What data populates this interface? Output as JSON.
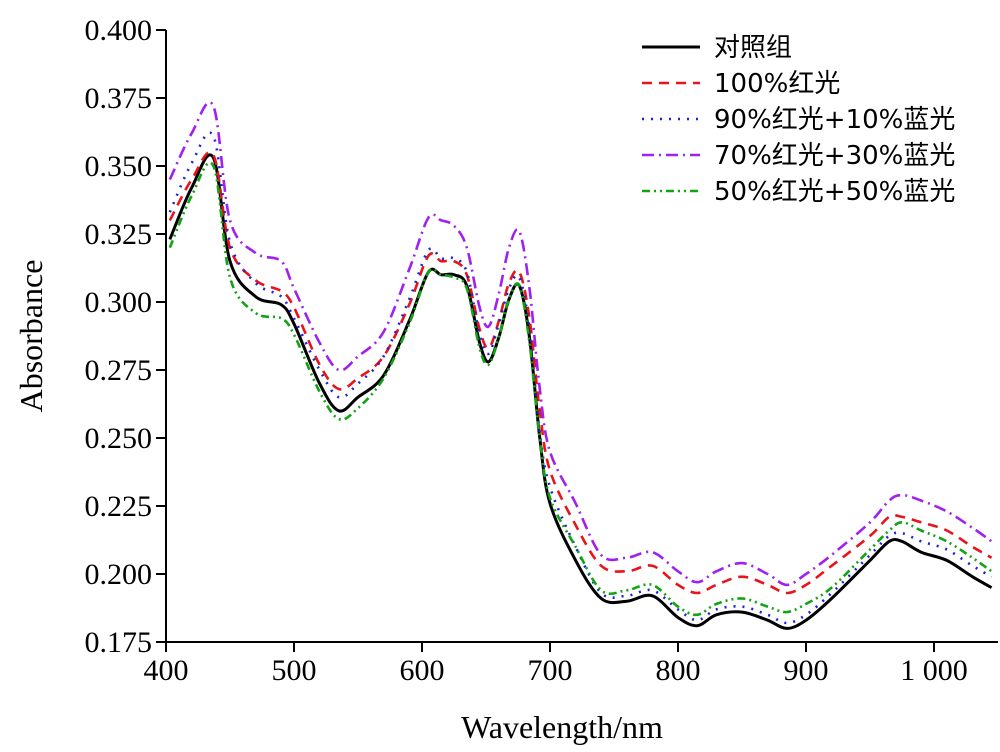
{
  "chart_data": {
    "type": "line",
    "title": "",
    "xlabel": "Wavelength/nm",
    "ylabel": "Absorbance",
    "xlim": [
      400,
      1050
    ],
    "ylim": [
      0.175,
      0.4
    ],
    "x_ticks": [
      400,
      500,
      600,
      700,
      800,
      900,
      1000
    ],
    "x_tick_labels": [
      "400",
      "500",
      "600",
      "700",
      "800",
      "900",
      "1 000"
    ],
    "y_ticks": [
      0.175,
      0.2,
      0.225,
      0.25,
      0.275,
      0.3,
      0.325,
      0.35,
      0.375,
      0.4
    ],
    "y_tick_labels": [
      "0.175",
      "0.200",
      "0.225",
      "0.250",
      "0.275",
      "0.300",
      "0.325",
      "0.350",
      "0.375",
      "0.400"
    ],
    "grid": false,
    "legend_position": "top-right",
    "x": [
      403,
      420,
      437,
      450,
      470,
      490,
      500,
      520,
      535,
      550,
      570,
      590,
      605,
      615,
      625,
      635,
      645,
      652,
      660,
      668,
      676,
      684,
      692,
      700,
      720,
      740,
      760,
      780,
      800,
      815,
      830,
      850,
      870,
      885,
      900,
      920,
      950,
      965,
      975,
      990,
      1010,
      1030,
      1045
    ],
    "series": [
      {
        "name": "对照组",
        "color": "#000000",
        "dash": "solid",
        "values": [
          0.323,
          0.342,
          0.353,
          0.315,
          0.302,
          0.299,
          0.292,
          0.27,
          0.26,
          0.265,
          0.273,
          0.293,
          0.311,
          0.31,
          0.31,
          0.306,
          0.285,
          0.278,
          0.287,
          0.301,
          0.306,
          0.287,
          0.25,
          0.226,
          0.205,
          0.191,
          0.19,
          0.192,
          0.184,
          0.181,
          0.185,
          0.186,
          0.183,
          0.18,
          0.183,
          0.191,
          0.205,
          0.212,
          0.212,
          0.208,
          0.205,
          0.199,
          0.195
        ]
      },
      {
        "name": "100%红光",
        "color": "#e8131b",
        "dash": "10,7",
        "values": [
          0.33,
          0.345,
          0.354,
          0.32,
          0.308,
          0.304,
          0.298,
          0.277,
          0.268,
          0.272,
          0.28,
          0.299,
          0.317,
          0.315,
          0.315,
          0.31,
          0.29,
          0.283,
          0.293,
          0.307,
          0.311,
          0.294,
          0.26,
          0.238,
          0.218,
          0.203,
          0.201,
          0.203,
          0.196,
          0.193,
          0.196,
          0.199,
          0.196,
          0.193,
          0.196,
          0.203,
          0.214,
          0.221,
          0.221,
          0.219,
          0.216,
          0.21,
          0.206
        ]
      },
      {
        "name": "90%红光+10%蓝光",
        "color": "#1a23d6",
        "dash": "2,7",
        "values": [
          0.333,
          0.351,
          0.361,
          0.322,
          0.307,
          0.302,
          0.294,
          0.275,
          0.265,
          0.27,
          0.28,
          0.301,
          0.319,
          0.316,
          0.316,
          0.311,
          0.288,
          0.281,
          0.292,
          0.305,
          0.309,
          0.29,
          0.252,
          0.232,
          0.21,
          0.193,
          0.192,
          0.194,
          0.187,
          0.183,
          0.187,
          0.188,
          0.185,
          0.182,
          0.185,
          0.193,
          0.207,
          0.214,
          0.215,
          0.212,
          0.209,
          0.203,
          0.199
        ]
      },
      {
        "name": "70%红光+30%蓝光",
        "color": "#a020f0",
        "dash": "12,5,2,5",
        "values": [
          0.345,
          0.362,
          0.372,
          0.33,
          0.318,
          0.315,
          0.305,
          0.285,
          0.275,
          0.28,
          0.289,
          0.312,
          0.331,
          0.33,
          0.328,
          0.32,
          0.298,
          0.291,
          0.303,
          0.32,
          0.326,
          0.305,
          0.268,
          0.245,
          0.226,
          0.207,
          0.206,
          0.208,
          0.201,
          0.197,
          0.201,
          0.204,
          0.2,
          0.196,
          0.2,
          0.207,
          0.219,
          0.227,
          0.229,
          0.227,
          0.223,
          0.217,
          0.212
        ]
      },
      {
        "name": "50%红光+50%蓝光",
        "color": "#12a312",
        "dash": "8,4,2,4,2,4",
        "values": [
          0.32,
          0.339,
          0.35,
          0.309,
          0.296,
          0.294,
          0.288,
          0.267,
          0.257,
          0.261,
          0.272,
          0.292,
          0.311,
          0.31,
          0.309,
          0.305,
          0.283,
          0.277,
          0.287,
          0.301,
          0.306,
          0.285,
          0.25,
          0.228,
          0.21,
          0.194,
          0.194,
          0.196,
          0.188,
          0.185,
          0.189,
          0.191,
          0.188,
          0.186,
          0.189,
          0.195,
          0.209,
          0.216,
          0.219,
          0.216,
          0.212,
          0.206,
          0.201
        ]
      }
    ]
  }
}
